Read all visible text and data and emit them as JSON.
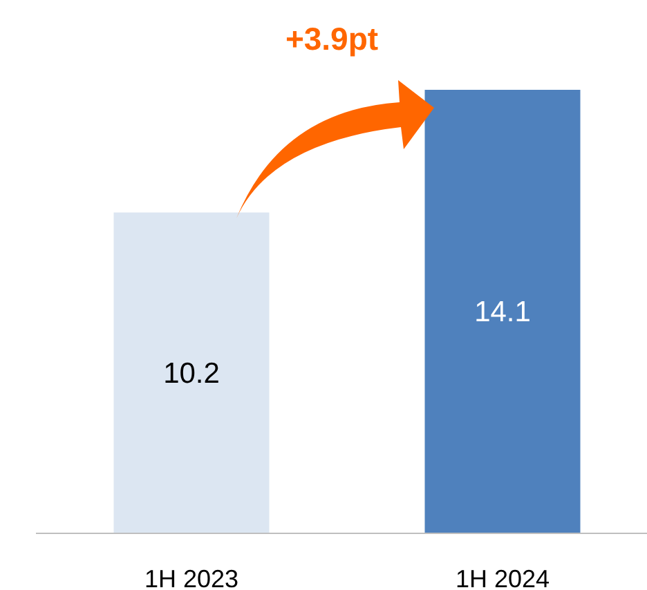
{
  "chart_data": {
    "type": "bar",
    "categories": [
      "1H 2023",
      "1H 2024"
    ],
    "values": [
      10.2,
      14.1
    ],
    "colors": [
      "#dce6f2",
      "#4f81bd"
    ],
    "data_labels": true,
    "annotations": [
      "+3.9pt"
    ]
  }
}
